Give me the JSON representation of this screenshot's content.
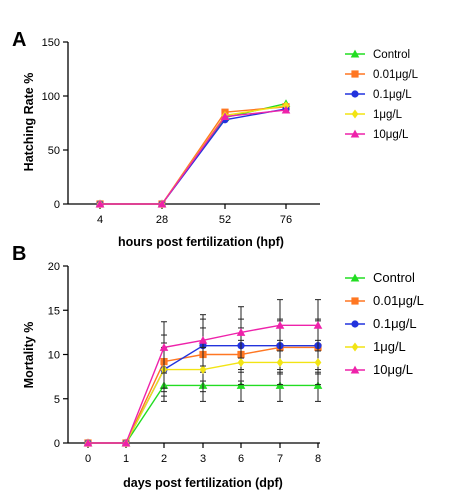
{
  "chart_data": [
    {
      "panel": "A",
      "type": "line",
      "ylabel": "Hatching Rate %",
      "xlabel": "hours post fertilization (hpf)",
      "categories": [
        "4",
        "28",
        "52",
        "76"
      ],
      "ylim": [
        0,
        150
      ],
      "yticks": [
        0,
        50,
        100,
        150
      ],
      "legend_placement": "right",
      "series": [
        {
          "name": "Control",
          "color": "#22dd22",
          "marker": "triangle-up",
          "values": [
            0,
            0,
            80,
            93
          ]
        },
        {
          "name": "0.01μg/L",
          "color": "#ff7722",
          "marker": "square",
          "values": [
            0,
            0,
            85,
            90
          ]
        },
        {
          "name": "0.1μg/L",
          "color": "#2233dd",
          "marker": "circle",
          "values": [
            0,
            0,
            78,
            88
          ]
        },
        {
          "name": "1μg/L",
          "color": "#f2e414",
          "marker": "diamond",
          "values": [
            0,
            0,
            82,
            91
          ]
        },
        {
          "name": "10μg/L",
          "color": "#ee22aa",
          "marker": "triangle-up",
          "values": [
            0,
            0,
            81,
            87
          ]
        }
      ]
    },
    {
      "panel": "B",
      "type": "line",
      "ylabel": "Mortality %",
      "xlabel": "days post fertilization (dpf)",
      "categories": [
        "0",
        "1",
        "2",
        "3",
        "6",
        "7",
        "8"
      ],
      "ylim": [
        0,
        20
      ],
      "yticks": [
        0,
        5,
        10,
        15,
        20
      ],
      "legend_placement": "right",
      "series": [
        {
          "name": "Control",
          "color": "#22dd22",
          "marker": "triangle-up",
          "values": [
            0,
            0,
            6.5,
            6.5,
            6.5,
            6.5,
            6.5
          ],
          "errors": [
            0,
            0,
            1.8,
            1.8,
            1.8,
            1.8,
            1.8
          ]
        },
        {
          "name": "0.01μg/L",
          "color": "#ff7722",
          "marker": "square",
          "values": [
            0,
            0,
            9.2,
            10,
            10,
            10.8,
            10.8
          ],
          "errors": [
            0,
            0,
            3,
            3,
            3,
            3,
            3
          ]
        },
        {
          "name": "0.1μg/L",
          "color": "#2233dd",
          "marker": "circle",
          "values": [
            0,
            0,
            8.3,
            11,
            11,
            11,
            11
          ],
          "errors": [
            0,
            0,
            3,
            3,
            3,
            3,
            3
          ]
        },
        {
          "name": "1μg/L",
          "color": "#f2e414",
          "marker": "diamond",
          "values": [
            0,
            0,
            8.3,
            8.3,
            9.1,
            9.1,
            9.1
          ],
          "errors": [
            0,
            0,
            2.5,
            2.5,
            2.5,
            2.5,
            2.5
          ]
        },
        {
          "name": "10μg/L",
          "color": "#ee22aa",
          "marker": "triangle-up",
          "values": [
            0,
            0,
            10.8,
            11.6,
            12.5,
            13.3,
            13.3
          ],
          "errors": [
            0,
            0,
            2.9,
            2.9,
            2.9,
            2.9,
            2.9
          ]
        }
      ]
    }
  ]
}
